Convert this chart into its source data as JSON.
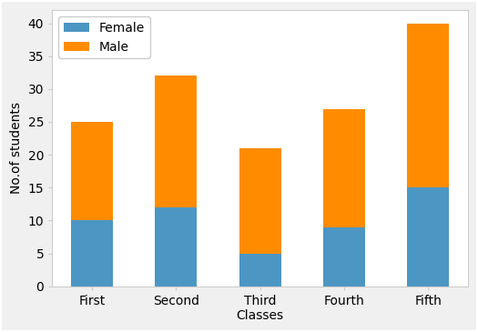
{
  "categories": [
    "First",
    "Second",
    "Third\nClasses",
    "Fourth",
    "Fifth"
  ],
  "female_values": [
    10,
    12,
    5,
    9,
    15
  ],
  "male_values": [
    15,
    20,
    16,
    18,
    25
  ],
  "female_color": "#4C96C4",
  "male_color": "#FF8C00",
  "ylabel": "No.of students",
  "ylim": [
    0,
    42
  ],
  "yticks": [
    0,
    5,
    10,
    15,
    20,
    25,
    30,
    35,
    40
  ],
  "legend_labels": [
    "Female",
    "Male"
  ],
  "legend_loc": "upper left",
  "fig_width": 5.25,
  "fig_height": 3.65,
  "dpi": 100,
  "bar_width": 0.5,
  "outer_bg": "#f0f0f0",
  "inner_bg": "#ffffff",
  "spine_color": "#cccccc",
  "tick_color": "#444444",
  "label_fontsize": 10,
  "tick_fontsize": 10,
  "legend_fontsize": 10
}
